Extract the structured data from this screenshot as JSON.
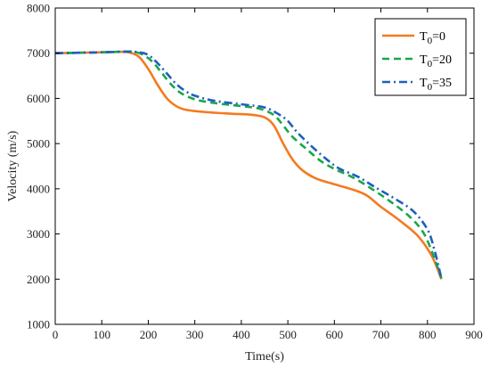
{
  "chart_data": {
    "type": "line",
    "title": "",
    "xlabel": "Time(s)",
    "ylabel": "Velocity (m/s)",
    "xlim": [
      0,
      900
    ],
    "ylim": [
      1000,
      8000
    ],
    "xticks": [
      0,
      100,
      200,
      300,
      400,
      500,
      600,
      700,
      800,
      900
    ],
    "yticks": [
      1000,
      2000,
      3000,
      4000,
      5000,
      6000,
      7000,
      8000
    ],
    "grid": false,
    "legend_position": "top-right",
    "series": [
      {
        "name": "T0=0",
        "legend_base": "T",
        "legend_sub": "0",
        "legend_suffix": "=0",
        "color": "#f47a20",
        "style": "solid",
        "points": [
          [
            0,
            7000
          ],
          [
            50,
            7010
          ],
          [
            100,
            7020
          ],
          [
            140,
            7030
          ],
          [
            160,
            7015
          ],
          [
            180,
            6920
          ],
          [
            200,
            6650
          ],
          [
            220,
            6300
          ],
          [
            240,
            6000
          ],
          [
            260,
            5830
          ],
          [
            280,
            5750
          ],
          [
            320,
            5700
          ],
          [
            380,
            5660
          ],
          [
            420,
            5640
          ],
          [
            450,
            5580
          ],
          [
            470,
            5400
          ],
          [
            490,
            5000
          ],
          [
            510,
            4650
          ],
          [
            530,
            4420
          ],
          [
            560,
            4230
          ],
          [
            600,
            4100
          ],
          [
            640,
            3980
          ],
          [
            670,
            3850
          ],
          [
            700,
            3600
          ],
          [
            740,
            3300
          ],
          [
            780,
            2950
          ],
          [
            810,
            2500
          ],
          [
            830,
            2000
          ]
        ]
      },
      {
        "name": "T0=20",
        "legend_base": "T",
        "legend_sub": "0",
        "legend_suffix": "=20",
        "color": "#1aa64a",
        "style": "dashed",
        "points": [
          [
            0,
            7000
          ],
          [
            50,
            7010
          ],
          [
            100,
            7020
          ],
          [
            150,
            7035
          ],
          [
            170,
            7030
          ],
          [
            190,
            6960
          ],
          [
            210,
            6800
          ],
          [
            230,
            6550
          ],
          [
            250,
            6300
          ],
          [
            270,
            6120
          ],
          [
            300,
            5980
          ],
          [
            340,
            5900
          ],
          [
            400,
            5830
          ],
          [
            440,
            5770
          ],
          [
            470,
            5630
          ],
          [
            490,
            5400
          ],
          [
            510,
            5150
          ],
          [
            540,
            4880
          ],
          [
            570,
            4620
          ],
          [
            600,
            4440
          ],
          [
            640,
            4250
          ],
          [
            680,
            4000
          ],
          [
            720,
            3720
          ],
          [
            760,
            3400
          ],
          [
            790,
            3050
          ],
          [
            810,
            2600
          ],
          [
            830,
            2020
          ]
        ]
      },
      {
        "name": "T0=35",
        "legend_base": "T",
        "legend_sub": "0",
        "legend_suffix": "=35",
        "color": "#1f5fbf",
        "style": "dashdot",
        "points": [
          [
            0,
            7000
          ],
          [
            50,
            7010
          ],
          [
            100,
            7020
          ],
          [
            150,
            7035
          ],
          [
            180,
            7020
          ],
          [
            200,
            6960
          ],
          [
            220,
            6780
          ],
          [
            240,
            6550
          ],
          [
            260,
            6320
          ],
          [
            280,
            6160
          ],
          [
            300,
            6060
          ],
          [
            340,
            5950
          ],
          [
            400,
            5870
          ],
          [
            450,
            5800
          ],
          [
            480,
            5650
          ],
          [
            500,
            5500
          ],
          [
            520,
            5250
          ],
          [
            550,
            4950
          ],
          [
            580,
            4680
          ],
          [
            610,
            4450
          ],
          [
            650,
            4270
          ],
          [
            690,
            4020
          ],
          [
            730,
            3780
          ],
          [
            770,
            3500
          ],
          [
            800,
            3100
          ],
          [
            815,
            2650
          ],
          [
            830,
            2020
          ]
        ]
      }
    ]
  }
}
